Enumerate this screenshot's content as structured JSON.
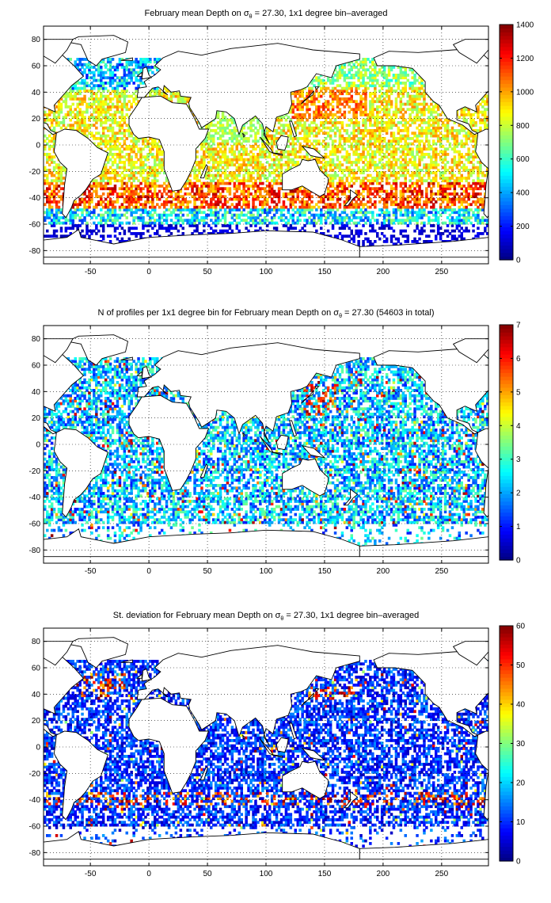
{
  "chart_data": [
    {
      "type": "heatmap",
      "title_parts": [
        "February mean Depth on ",
        "σ",
        "θ",
        " = 27.30, 1x1 degree bin–averaged"
      ],
      "xlabel": "",
      "ylabel": "",
      "xlim": [
        -90,
        290
      ],
      "ylim": [
        -90,
        90
      ],
      "x_ticks": [
        -50,
        0,
        50,
        100,
        150,
        200,
        250
      ],
      "y_ticks": [
        -80,
        -60,
        -40,
        -20,
        0,
        20,
        40,
        60,
        80
      ],
      "grid": true,
      "colormap": "jet",
      "colorbar": {
        "min": 0,
        "max": 1400,
        "ticks": [
          0,
          200,
          400,
          600,
          800,
          1000,
          1200,
          1400
        ]
      }
    },
    {
      "type": "heatmap",
      "title_parts": [
        "N of profiles per 1x1 degree bin for February mean Depth on ",
        "σ",
        "θ",
        " = 27.30 (54603 in total)"
      ],
      "xlabel": "",
      "ylabel": "",
      "xlim": [
        -90,
        290
      ],
      "ylim": [
        -90,
        90
      ],
      "x_ticks": [
        -50,
        0,
        50,
        100,
        150,
        200,
        250
      ],
      "y_ticks": [
        -80,
        -60,
        -40,
        -20,
        0,
        20,
        40,
        60,
        80
      ],
      "grid": true,
      "colormap": "jet",
      "total_profiles": 54603,
      "colorbar": {
        "min": 0,
        "max": 7,
        "ticks": [
          0,
          1,
          2,
          3,
          4,
          5,
          6,
          7
        ]
      }
    },
    {
      "type": "heatmap",
      "title_parts": [
        "St. deviation for February mean Depth on ",
        "σ",
        "θ",
        " = 27.30, 1x1 degree bin–averaged"
      ],
      "xlabel": "",
      "ylabel": "",
      "xlim": [
        -90,
        290
      ],
      "ylim": [
        -90,
        90
      ],
      "x_ticks": [
        -50,
        0,
        50,
        100,
        150,
        200,
        250
      ],
      "y_ticks": [
        -80,
        -60,
        -40,
        -20,
        0,
        20,
        40,
        60,
        80
      ],
      "grid": true,
      "colormap": "jet",
      "colorbar": {
        "min": 0,
        "max": 60,
        "ticks": [
          0,
          10,
          20,
          30,
          40,
          50,
          60
        ]
      }
    }
  ]
}
